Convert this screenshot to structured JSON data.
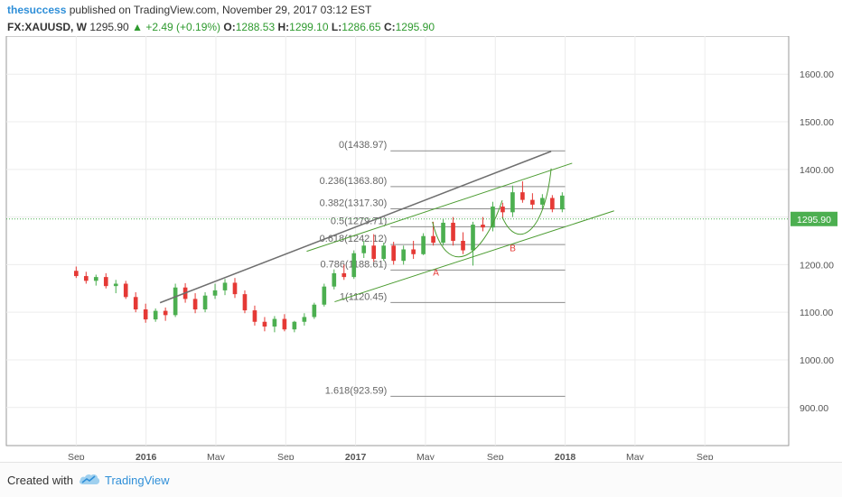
{
  "header": {
    "author": "thesuccess",
    "published": "published on TradingView.com, November 29, 2017 03:12 EST"
  },
  "ohlc": {
    "symbol": "FX:XAUUSD, W",
    "last": "1295.90",
    "change": "+2.49 (+0.19%)",
    "o_label": "O:",
    "o": "1288.53",
    "h_label": "H:",
    "h": "1299.10",
    "l_label": "L:",
    "l": "1286.65",
    "c_label": "C:",
    "c": "1295.90"
  },
  "footer": {
    "created_with": "Created with",
    "brand": "TradingView"
  },
  "colors": {
    "up": "#4caf50",
    "down": "#e53935",
    "trend": "#4a9b2f",
    "gray": "#7d7d7d",
    "accent": "#2f8fd8"
  },
  "chart_data": {
    "type": "candlestick",
    "title": "FX:XAUUSD, W",
    "ylim": [
      820,
      1680
    ],
    "xlim": [
      0,
      112
    ],
    "y_ticks": [
      "900.00",
      "1000.00",
      "1100.00",
      "1200.00",
      "1300.00",
      "1400.00",
      "1500.00",
      "1600.00"
    ],
    "y_tick_values": [
      900,
      1000,
      1100,
      1200,
      1300,
      1400,
      1500,
      1600
    ],
    "x_ticks": [
      {
        "label": "Sep",
        "week": 10
      },
      {
        "label": "2016",
        "week": 20
      },
      {
        "label": "May",
        "week": 30
      },
      {
        "label": "Sep",
        "week": 40
      },
      {
        "label": "2017",
        "week": 50
      },
      {
        "label": "May",
        "week": 60
      },
      {
        "label": "Sep",
        "week": 70
      },
      {
        "label": "2018",
        "week": 80
      },
      {
        "label": "May",
        "week": 90
      },
      {
        "label": "Sep",
        "week": 100
      }
    ],
    "last_price_label": "1295.90",
    "last_price": 1295.9,
    "candles": [
      [
        1187,
        1196,
        1172,
        1176
      ],
      [
        1176,
        1185,
        1160,
        1166
      ],
      [
        1166,
        1179,
        1156,
        1174
      ],
      [
        1174,
        1182,
        1150,
        1155
      ],
      [
        1155,
        1168,
        1140,
        1160
      ],
      [
        1160,
        1166,
        1128,
        1132
      ],
      [
        1132,
        1142,
        1100,
        1106
      ],
      [
        1106,
        1118,
        1078,
        1085
      ],
      [
        1085,
        1108,
        1080,
        1103
      ],
      [
        1103,
        1110,
        1082,
        1094
      ],
      [
        1094,
        1160,
        1090,
        1152
      ],
      [
        1152,
        1161,
        1120,
        1128
      ],
      [
        1128,
        1140,
        1098,
        1106
      ],
      [
        1106,
        1142,
        1100,
        1135
      ],
      [
        1135,
        1160,
        1128,
        1146
      ],
      [
        1146,
        1170,
        1136,
        1162
      ],
      [
        1162,
        1172,
        1130,
        1138
      ],
      [
        1138,
        1146,
        1098,
        1104
      ],
      [
        1104,
        1114,
        1072,
        1080
      ],
      [
        1080,
        1090,
        1060,
        1070
      ],
      [
        1070,
        1092,
        1058,
        1086
      ],
      [
        1086,
        1096,
        1060,
        1064
      ],
      [
        1064,
        1082,
        1058,
        1080
      ],
      [
        1080,
        1098,
        1072,
        1090
      ],
      [
        1090,
        1120,
        1086,
        1116
      ],
      [
        1116,
        1160,
        1112,
        1154
      ],
      [
        1154,
        1190,
        1148,
        1182
      ],
      [
        1182,
        1200,
        1168,
        1174
      ],
      [
        1174,
        1230,
        1170,
        1224
      ],
      [
        1224,
        1250,
        1214,
        1240
      ],
      [
        1240,
        1264,
        1206,
        1212
      ],
      [
        1212,
        1246,
        1208,
        1240
      ],
      [
        1240,
        1248,
        1200,
        1208
      ],
      [
        1208,
        1240,
        1200,
        1232
      ],
      [
        1232,
        1250,
        1212,
        1222
      ],
      [
        1222,
        1266,
        1220,
        1260
      ],
      [
        1260,
        1290,
        1240,
        1246
      ],
      [
        1246,
        1296,
        1240,
        1288
      ],
      [
        1288,
        1300,
        1240,
        1250
      ],
      [
        1250,
        1268,
        1222,
        1230
      ],
      [
        1230,
        1290,
        1198,
        1284
      ],
      [
        1284,
        1300,
        1270,
        1278
      ],
      [
        1278,
        1332,
        1270,
        1322
      ],
      [
        1322,
        1330,
        1296,
        1310
      ],
      [
        1310,
        1366,
        1300,
        1352
      ],
      [
        1352,
        1375,
        1330,
        1336
      ],
      [
        1336,
        1350,
        1316,
        1326
      ],
      [
        1326,
        1348,
        1318,
        1340
      ],
      [
        1340,
        1346,
        1310,
        1316
      ],
      [
        1316,
        1352,
        1310,
        1345
      ]
    ],
    "fibonacci": [
      {
        "label": "0(1438.97)",
        "value": 1438.97
      },
      {
        "label": "0.236(1363.80)",
        "value": 1363.8
      },
      {
        "label": "0.382(1317.30)",
        "value": 1317.3
      },
      {
        "label": "0.5(1279.71)",
        "value": 1279.71
      },
      {
        "label": "0.618(1242.12)",
        "value": 1242.12
      },
      {
        "label": "0.786(1188.61)",
        "value": 1188.61
      },
      {
        "label": "1(1120.45)",
        "value": 1120.45
      },
      {
        "label": "1.618(923.59)",
        "value": 923.59
      }
    ],
    "annotations": [
      {
        "label": "A",
        "week": 61.5,
        "value": 1188
      },
      {
        "label": "B",
        "week": 72.5,
        "value": 1240
      }
    ],
    "grid": true
  }
}
